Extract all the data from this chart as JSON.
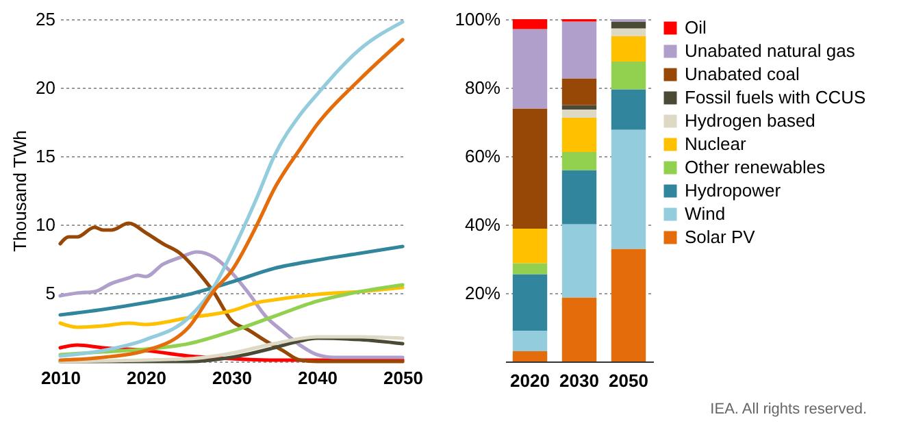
{
  "chart_data": [
    {
      "type": "line",
      "ylabel": "Thousand TWh",
      "xlim": [
        2010,
        2050
      ],
      "xticks": [
        2010,
        2020,
        2030,
        2040,
        2050
      ],
      "ylim": [
        0,
        25
      ],
      "yticks": [
        {
          "value": 0,
          "label": null
        },
        5,
        10,
        15,
        20,
        25
      ],
      "grid": "y",
      "line_style": "solid",
      "marker": "none",
      "series": [
        {
          "color": "#ff0000",
          "x": [
            2010,
            2012,
            2015,
            2020,
            2025,
            2030,
            2035,
            2050
          ],
          "values": [
            1.0,
            1.2,
            1.0,
            0.8,
            0.4,
            0.2,
            0.1,
            0.1
          ]
        },
        {
          "color": "#b09fca",
          "x": [
            2010,
            2012,
            2014,
            2016,
            2018,
            2019,
            2020,
            2022,
            2024,
            2026,
            2028,
            2030,
            2032,
            2034,
            2036,
            2038,
            2040,
            2042,
            2050
          ],
          "values": [
            4.8,
            5.0,
            5.1,
            5.7,
            6.1,
            6.3,
            6.2,
            7.1,
            7.6,
            8.0,
            7.6,
            6.5,
            5.0,
            3.3,
            2.2,
            1.2,
            0.5,
            0.3,
            0.3
          ]
        },
        {
          "color": "#974706",
          "x": [
            2010,
            2011,
            2012,
            2014,
            2015,
            2016,
            2018,
            2020,
            2022,
            2024,
            2026,
            2028,
            2030,
            2032,
            2034,
            2036,
            2038,
            2040,
            2050
          ],
          "values": [
            8.6,
            9.1,
            9.1,
            9.8,
            9.6,
            9.6,
            10.1,
            9.4,
            8.6,
            7.9,
            6.6,
            5.0,
            3.0,
            2.3,
            1.5,
            0.8,
            0.1,
            0,
            0
          ]
        },
        {
          "color": "#4a4a36",
          "x": [
            2010,
            2025,
            2030,
            2035,
            2038,
            2040,
            2045,
            2050
          ],
          "values": [
            0,
            0,
            0.3,
            1.0,
            1.5,
            1.7,
            1.6,
            1.3
          ]
        },
        {
          "color": "#ddd9c4",
          "x": [
            2010,
            2025,
            2030,
            2035,
            2040,
            2045,
            2050
          ],
          "values": [
            0,
            0.2,
            0.6,
            1.3,
            1.8,
            1.8,
            1.7
          ]
        },
        {
          "color": "#ffc000",
          "x": [
            2010,
            2012,
            2015,
            2018,
            2020,
            2025,
            2030,
            2033,
            2035,
            2040,
            2045,
            2050
          ],
          "values": [
            2.8,
            2.5,
            2.6,
            2.8,
            2.7,
            3.2,
            3.7,
            4.3,
            4.5,
            4.9,
            5.1,
            5.4
          ]
        },
        {
          "color": "#92d050",
          "x": [
            2010,
            2015,
            2020,
            2025,
            2030,
            2035,
            2040,
            2045,
            2050
          ],
          "values": [
            0.5,
            0.7,
            0.9,
            1.3,
            2.2,
            3.3,
            4.4,
            5.1,
            5.6
          ]
        },
        {
          "color": "#31859c",
          "x": [
            2010,
            2015,
            2020,
            2025,
            2030,
            2035,
            2040,
            2045,
            2050
          ],
          "values": [
            3.4,
            3.8,
            4.3,
            4.9,
            5.8,
            6.8,
            7.4,
            7.9,
            8.4
          ]
        },
        {
          "color": "#93cddd",
          "x": [
            2010,
            2015,
            2020,
            2025,
            2028,
            2030,
            2033,
            2035,
            2038,
            2040,
            2045,
            2050
          ],
          "values": [
            0.4,
            0.8,
            1.6,
            3.2,
            5.5,
            7.9,
            12,
            15,
            18,
            19.5,
            22.8,
            24.8
          ]
        },
        {
          "color": "#e46c0a",
          "x": [
            2010,
            2015,
            2020,
            2025,
            2028,
            2030,
            2033,
            2035,
            2038,
            2040,
            2045,
            2050
          ],
          "values": [
            0.1,
            0.3,
            0.8,
            2.5,
            5.2,
            6.6,
            10,
            12.6,
            15.5,
            17.3,
            20.6,
            23.5
          ]
        }
      ]
    },
    {
      "type": "bar",
      "stacked": true,
      "categories": [
        "2020",
        "2030",
        "2050"
      ],
      "ylim": [
        0,
        100
      ],
      "yticks": [
        {
          "value": 0,
          "label": null
        },
        {
          "value": 20,
          "label": "20%"
        },
        {
          "value": 40,
          "label": "40%"
        },
        {
          "value": 60,
          "label": "60%"
        },
        {
          "value": 80,
          "label": "80%"
        },
        {
          "value": 100,
          "label": "100%"
        }
      ],
      "grid": "y",
      "legend": "right",
      "series": [
        {
          "name": "Solar PV",
          "color": "#e46c0a",
          "values": [
            3,
            18.7,
            32.9
          ]
        },
        {
          "name": "Wind",
          "color": "#93cddd",
          "values": [
            6,
            21.4,
            34.8
          ]
        },
        {
          "name": "Hydropower",
          "color": "#31859c",
          "values": [
            16.5,
            15.8,
            11.8
          ]
        },
        {
          "name": "Other renewables",
          "color": "#92d050",
          "values": [
            3.2,
            5.3,
            8.1
          ]
        },
        {
          "name": "Nuclear",
          "color": "#ffc000",
          "values": [
            10.1,
            10,
            7.5
          ]
        },
        {
          "name": "Hydrogen based",
          "color": "#ddd9c4",
          "values": [
            0,
            2.4,
            2.2
          ]
        },
        {
          "name": "Fossil fuels with CCUS",
          "color": "#4a4a36",
          "values": [
            0,
            1.3,
            2.0
          ]
        },
        {
          "name": "Unabated coal",
          "color": "#974706",
          "values": [
            35.1,
            7.8,
            0
          ]
        },
        {
          "name": "Unabated natural gas",
          "color": "#b09fca",
          "values": [
            23.2,
            16.6,
            0.7
          ]
        },
        {
          "name": "Oil",
          "color": "#ff0000",
          "values": [
            2.9,
            0.7,
            0
          ]
        }
      ],
      "annotations": [
        "IEA. All rights reserved."
      ]
    }
  ]
}
